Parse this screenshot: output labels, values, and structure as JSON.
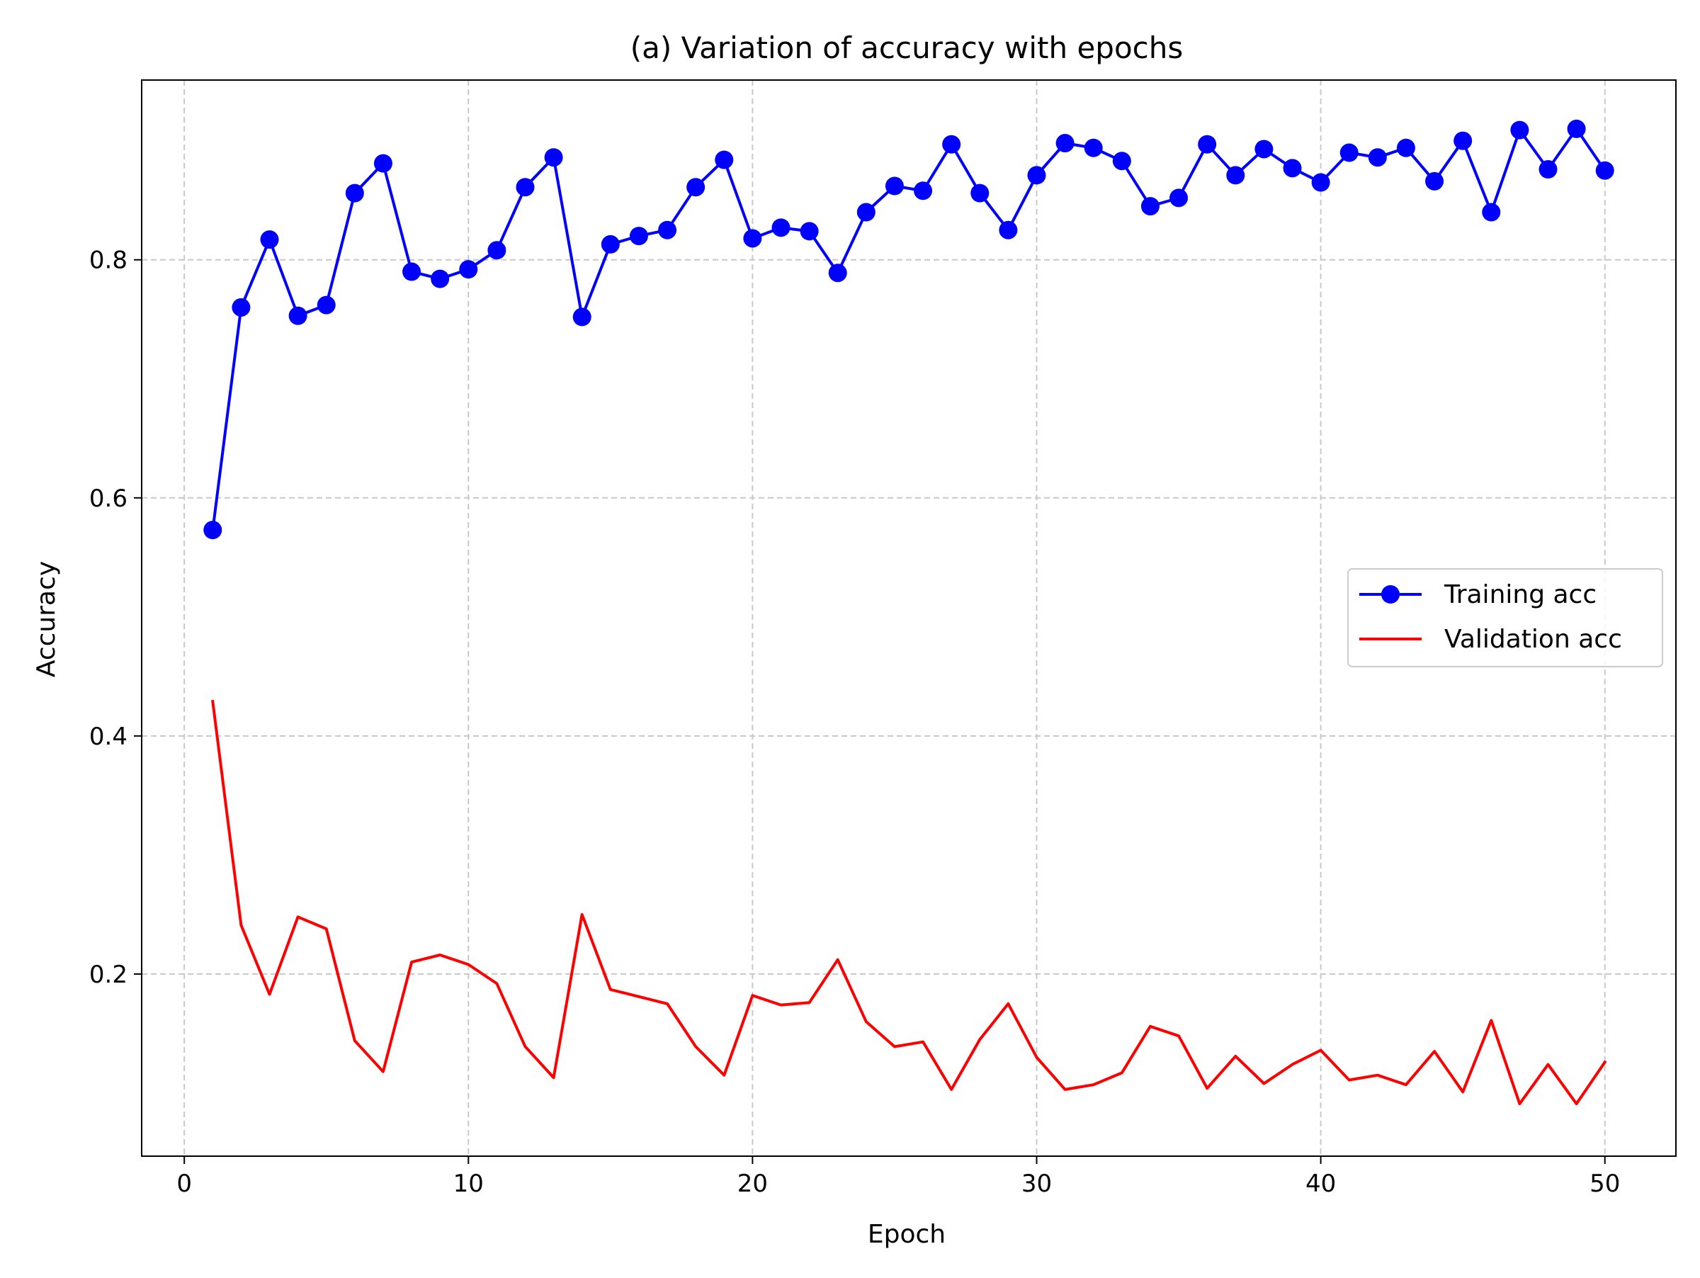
{
  "chart_data": {
    "type": "line",
    "title": "(a) Variation of accuracy with epochs",
    "xlabel": "Epoch",
    "ylabel": "Accuracy",
    "xlim": [
      -1.5,
      52.5
    ],
    "ylim": [
      0.047,
      0.951
    ],
    "xticks": [
      0,
      10,
      20,
      30,
      40,
      50
    ],
    "xtick_labels": [
      "0",
      "10",
      "20",
      "30",
      "40",
      "50"
    ],
    "yticks": [
      0.2,
      0.4,
      0.6,
      0.8
    ],
    "ytick_labels": [
      "0.2",
      "0.4",
      "0.6",
      "0.8"
    ],
    "grid": true,
    "legend_position": "center-right",
    "x": [
      1,
      2,
      3,
      4,
      5,
      6,
      7,
      8,
      9,
      10,
      11,
      12,
      13,
      14,
      15,
      16,
      17,
      18,
      19,
      20,
      21,
      22,
      23,
      24,
      25,
      26,
      27,
      28,
      29,
      30,
      31,
      32,
      33,
      34,
      35,
      36,
      37,
      38,
      39,
      40,
      41,
      42,
      43,
      44,
      45,
      46,
      47,
      48,
      49,
      50
    ],
    "series": [
      {
        "name": "Training acc",
        "color": "#0000ff",
        "marker": "circle",
        "values": [
          0.573,
          0.76,
          0.817,
          0.753,
          0.762,
          0.856,
          0.881,
          0.79,
          0.784,
          0.792,
          0.808,
          0.861,
          0.886,
          0.752,
          0.813,
          0.82,
          0.825,
          0.861,
          0.884,
          0.818,
          0.827,
          0.824,
          0.789,
          0.84,
          0.862,
          0.858,
          0.897,
          0.856,
          0.825,
          0.871,
          0.898,
          0.894,
          0.883,
          0.845,
          0.852,
          0.897,
          0.871,
          0.893,
          0.877,
          0.865,
          0.89,
          0.886,
          0.894,
          0.866,
          0.9,
          0.84,
          0.909,
          0.876,
          0.91,
          0.875
        ]
      },
      {
        "name": "Validation acc",
        "color": "#ff0000",
        "marker": "none",
        "values": [
          0.429,
          0.241,
          0.183,
          0.248,
          0.238,
          0.144,
          0.118,
          0.21,
          0.216,
          0.208,
          0.192,
          0.139,
          0.113,
          0.25,
          0.187,
          0.181,
          0.175,
          0.139,
          0.115,
          0.182,
          0.174,
          0.176,
          0.212,
          0.16,
          0.139,
          0.143,
          0.103,
          0.145,
          0.175,
          0.13,
          0.103,
          0.107,
          0.117,
          0.156,
          0.148,
          0.104,
          0.131,
          0.108,
          0.124,
          0.136,
          0.111,
          0.115,
          0.107,
          0.135,
          0.101,
          0.161,
          0.091,
          0.124,
          0.091,
          0.126
        ]
      }
    ]
  }
}
